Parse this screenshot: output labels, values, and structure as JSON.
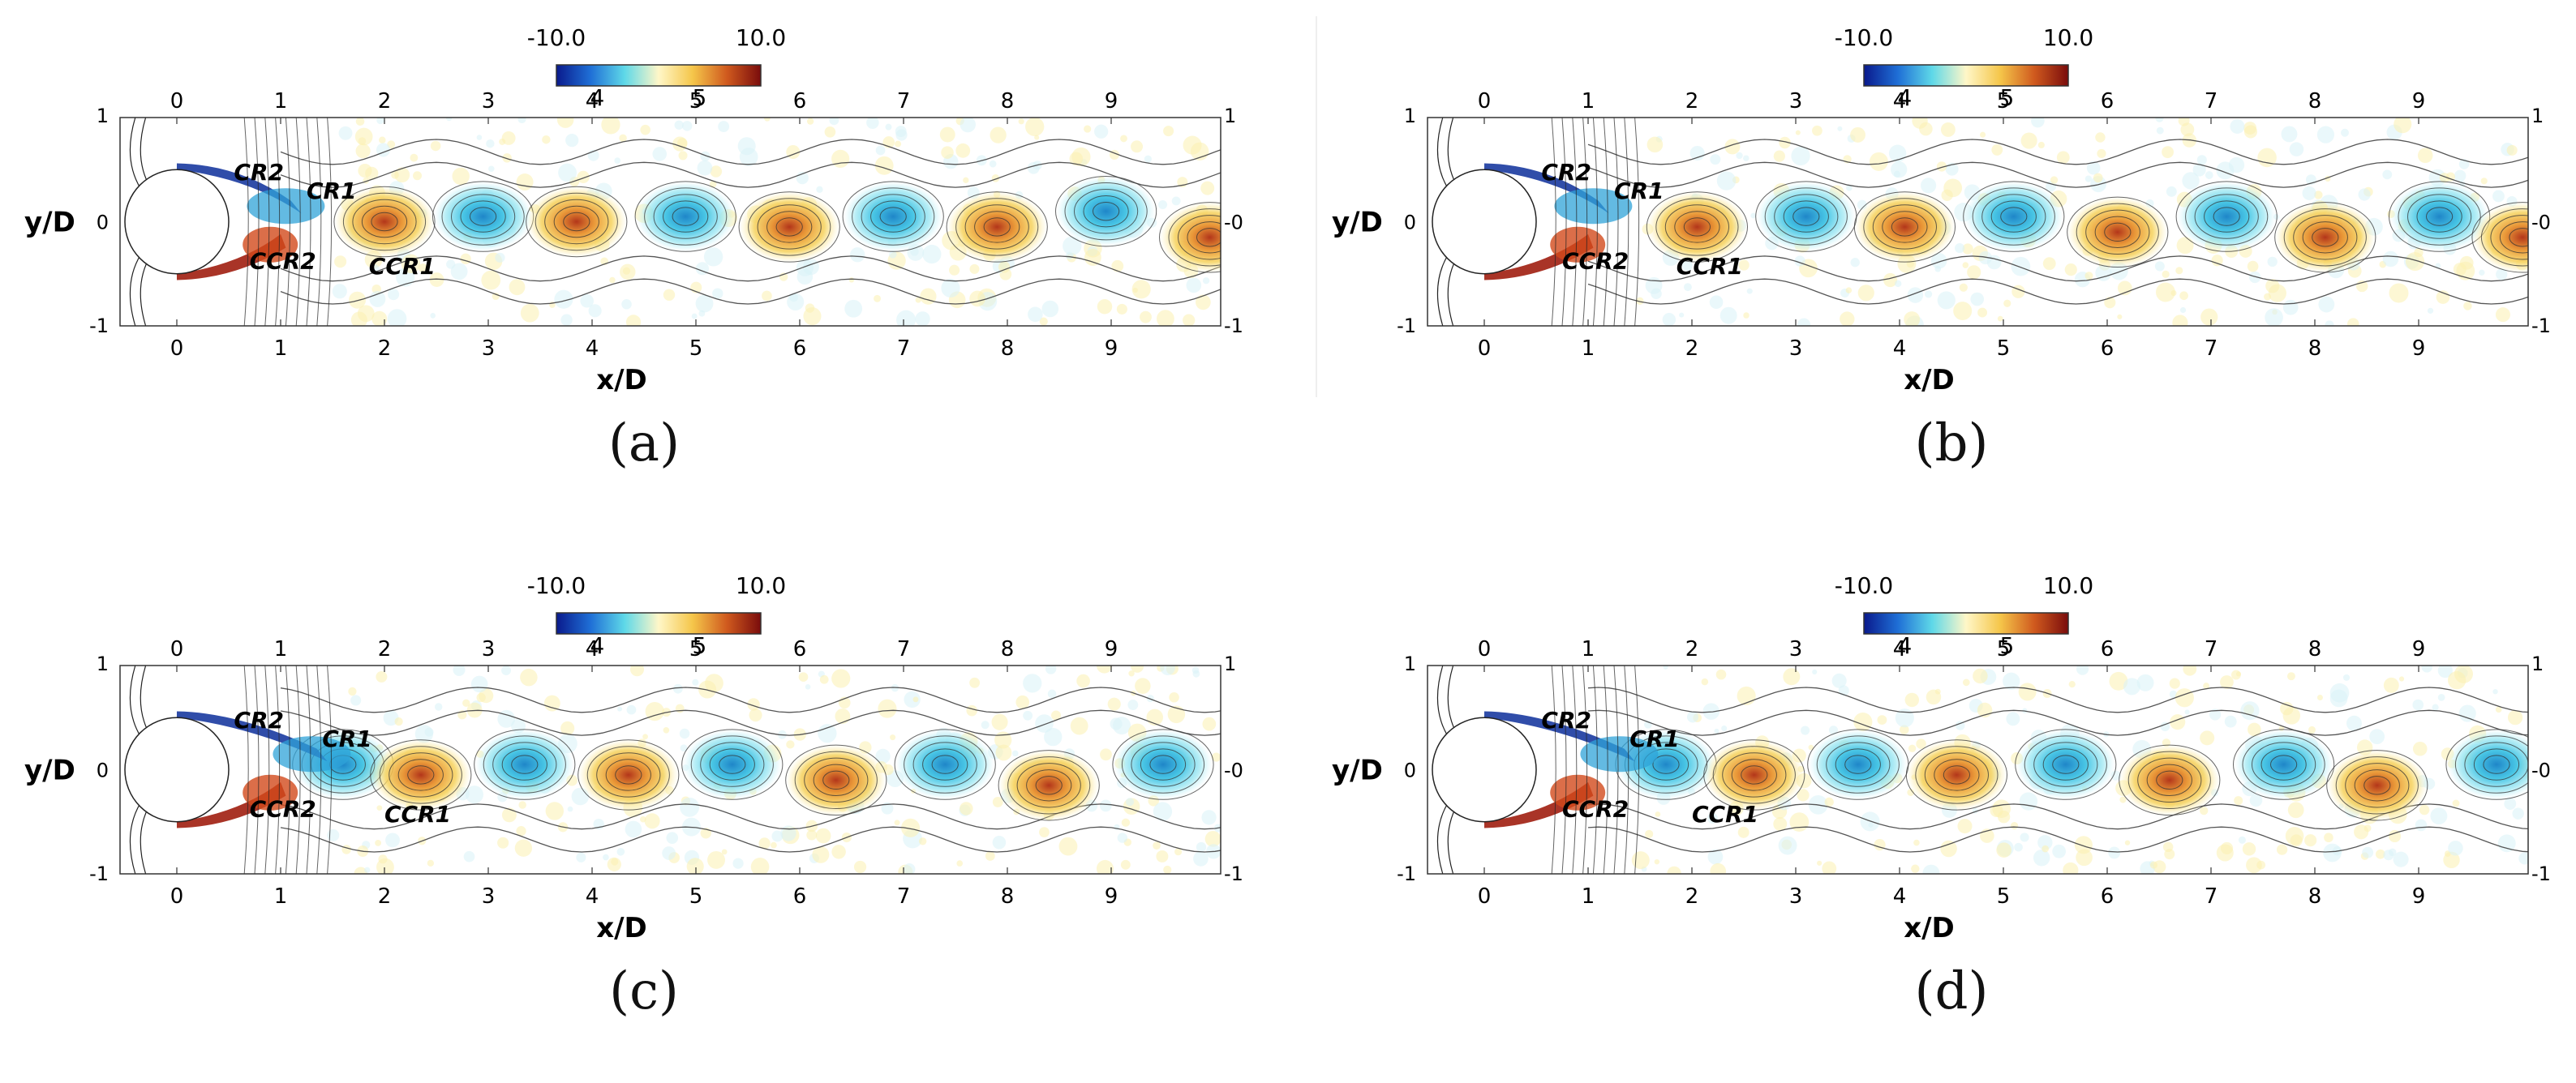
{
  "colorbar": {
    "min_label": "-10.0",
    "max_label": "10.0",
    "ticks": [
      "4",
      "5"
    ],
    "colors": [
      "#0a1a8c",
      "#1f6fd6",
      "#5ed8e8",
      "#fff7c8",
      "#f5c64a",
      "#d05a1e",
      "#7a0c0c"
    ]
  },
  "axes": {
    "xlabel": "x/D",
    "ylabel": "y/D",
    "xticks": [
      "0",
      "1",
      "2",
      "3",
      "4",
      "5",
      "6",
      "7",
      "8",
      "9"
    ],
    "y_top": "1",
    "y_mid": "0",
    "y_bottom": "-1",
    "y_right_mid": "-0"
  },
  "panels": [
    {
      "label": "(a)",
      "labels": [
        "CR2",
        "CR1",
        "CCR2",
        "CCR1"
      ],
      "vortices": [
        {
          "x": 2.0,
          "y": 0.0,
          "sign": 1
        },
        {
          "x": 2.95,
          "y": 0.05,
          "sign": -1
        },
        {
          "x": 3.85,
          "y": 0.0,
          "sign": 1
        },
        {
          "x": 4.9,
          "y": 0.05,
          "sign": -1
        },
        {
          "x": 5.9,
          "y": -0.05,
          "sign": 1
        },
        {
          "x": 6.9,
          "y": 0.05,
          "sign": -1
        },
        {
          "x": 7.9,
          "y": -0.05,
          "sign": 1
        },
        {
          "x": 8.95,
          "y": 0.1,
          "sign": -1
        },
        {
          "x": 9.95,
          "y": -0.15,
          "sign": 1
        }
      ]
    },
    {
      "label": "(b)",
      "labels": [
        "CR2",
        "CR1",
        "CCR2",
        "CCR1"
      ],
      "vortices": [
        {
          "x": 2.05,
          "y": -0.05,
          "sign": 1
        },
        {
          "x": 3.1,
          "y": 0.05,
          "sign": -1
        },
        {
          "x": 4.05,
          "y": -0.05,
          "sign": 1
        },
        {
          "x": 5.1,
          "y": 0.05,
          "sign": -1
        },
        {
          "x": 6.1,
          "y": -0.1,
          "sign": 1
        },
        {
          "x": 7.15,
          "y": 0.05,
          "sign": -1
        },
        {
          "x": 8.1,
          "y": -0.15,
          "sign": 1
        },
        {
          "x": 9.2,
          "y": 0.05,
          "sign": -1
        },
        {
          "x": 10.0,
          "y": -0.15,
          "sign": 1
        }
      ]
    },
    {
      "label": "(c)",
      "labels": [
        "CR2",
        "CR1",
        "CCR2",
        "CCR1"
      ],
      "vortices": [
        {
          "x": 1.6,
          "y": 0.05,
          "sign": -1
        },
        {
          "x": 2.35,
          "y": -0.05,
          "sign": 1
        },
        {
          "x": 3.35,
          "y": 0.05,
          "sign": -1
        },
        {
          "x": 4.35,
          "y": -0.05,
          "sign": 1
        },
        {
          "x": 5.35,
          "y": 0.05,
          "sign": -1
        },
        {
          "x": 6.35,
          "y": -0.1,
          "sign": 1
        },
        {
          "x": 7.4,
          "y": 0.05,
          "sign": -1
        },
        {
          "x": 8.4,
          "y": -0.15,
          "sign": 1
        },
        {
          "x": 9.5,
          "y": 0.05,
          "sign": -1
        }
      ]
    },
    {
      "label": "(d)",
      "labels": [
        "CR2",
        "CR1",
        "CCR2",
        "CCR1"
      ],
      "vortices": [
        {
          "x": 1.75,
          "y": 0.05,
          "sign": -1
        },
        {
          "x": 2.6,
          "y": -0.05,
          "sign": 1
        },
        {
          "x": 3.6,
          "y": 0.05,
          "sign": -1
        },
        {
          "x": 4.55,
          "y": -0.05,
          "sign": 1
        },
        {
          "x": 5.6,
          "y": 0.05,
          "sign": -1
        },
        {
          "x": 6.6,
          "y": -0.1,
          "sign": 1
        },
        {
          "x": 7.7,
          "y": 0.05,
          "sign": -1
        },
        {
          "x": 8.6,
          "y": -0.15,
          "sign": 1
        },
        {
          "x": 9.75,
          "y": 0.05,
          "sign": -1
        }
      ]
    }
  ]
}
